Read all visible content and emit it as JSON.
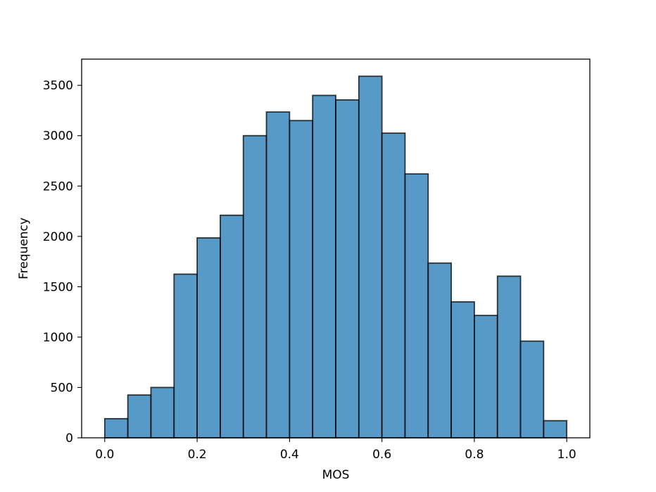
{
  "chart_data": {
    "type": "bar",
    "title": "",
    "xlabel": "MOS",
    "ylabel": "Frequency",
    "bin_edges": [
      0.0,
      0.05,
      0.1,
      0.15,
      0.2,
      0.25,
      0.3,
      0.35,
      0.4,
      0.45,
      0.5,
      0.55,
      0.6,
      0.65,
      0.7,
      0.75,
      0.8,
      0.85,
      0.9,
      0.95,
      1.0
    ],
    "values": [
      190,
      425,
      500,
      1625,
      1985,
      2210,
      3000,
      3235,
      3150,
      3400,
      3355,
      3590,
      3025,
      2620,
      1735,
      1350,
      1215,
      1605,
      960,
      170
    ],
    "xlim": [
      -0.05,
      1.05
    ],
    "ylim": [
      0,
      3760
    ],
    "xticks": [
      0.0,
      0.2,
      0.4,
      0.6,
      0.8,
      1.0
    ],
    "xtick_labels": [
      "0.0",
      "0.2",
      "0.4",
      "0.6",
      "0.8",
      "1.0"
    ],
    "yticks": [
      0,
      500,
      1000,
      1500,
      2000,
      2500,
      3000,
      3500
    ],
    "ytick_labels": [
      "0",
      "500",
      "1000",
      "1500",
      "2000",
      "2500",
      "3000",
      "3500"
    ],
    "bar_color": "#1f77b4",
    "edge_color": "#000000",
    "grid": false,
    "legend": "none"
  }
}
